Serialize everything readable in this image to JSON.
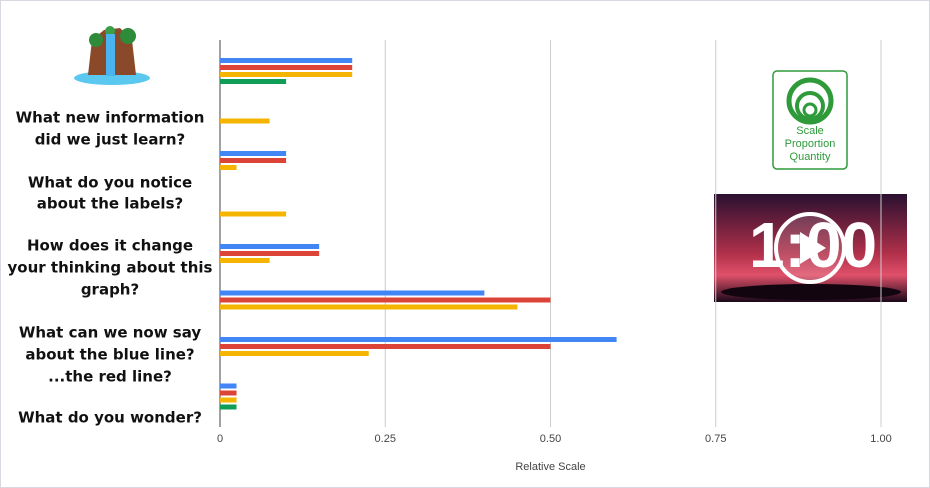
{
  "slide": {
    "questions": [
      [
        "What new information",
        "did we just learn?"
      ],
      [
        "What do you notice",
        "about the labels?"
      ],
      [
        "How does it change",
        "your thinking about this",
        "graph?"
      ],
      [
        "What can we now say",
        "about the blue line?",
        "...the red line?"
      ],
      [
        "What do you wonder?"
      ]
    ],
    "logo": [
      "Scale",
      "Proportion",
      "Quantity"
    ],
    "video": "1:00"
  },
  "chart_data": {
    "type": "bar",
    "orientation": "horizontal",
    "categories": [
      null,
      null,
      null,
      null,
      null,
      null,
      null,
      null
    ],
    "series": [
      {
        "color": "#4285f4",
        "values": [
          0.2,
          null,
          0.1,
          null,
          0.15,
          0.4,
          0.6,
          0.025
        ]
      },
      {
        "color": "#db4437",
        "values": [
          0.2,
          null,
          0.1,
          null,
          0.15,
          0.5,
          0.5,
          0.025
        ]
      },
      {
        "color": "#f4b400",
        "values": [
          0.2,
          0.075,
          0.025,
          0.1,
          0.075,
          0.45,
          0.225,
          0.025
        ]
      },
      {
        "color": "#0f9d58",
        "values": [
          0.1,
          null,
          null,
          null,
          null,
          null,
          null,
          0.025
        ]
      }
    ],
    "xlabel": "Relative Scale",
    "xlim": [
      0,
      1
    ],
    "xticks": [
      0,
      0.25,
      {
        "value": 0.5,
        "label": "0.50"
      },
      0.75,
      {
        "value": 1,
        "label": "1.00"
      }
    ],
    "grid": true
  }
}
